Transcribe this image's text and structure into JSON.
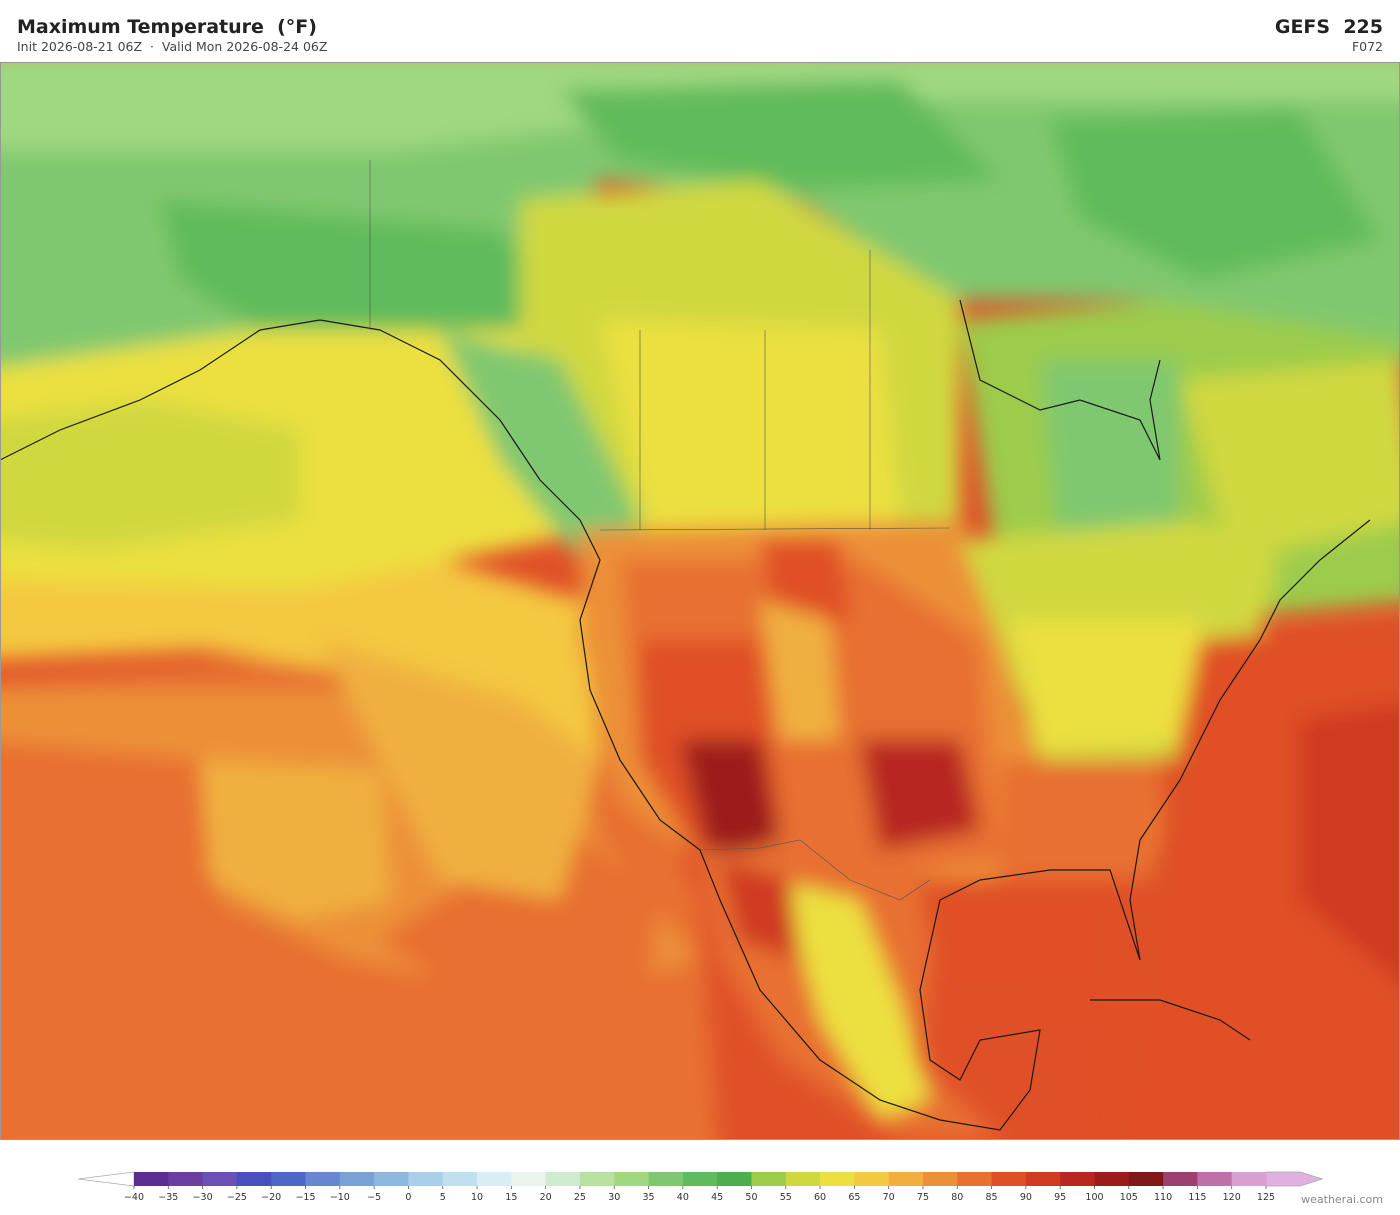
{
  "header": {
    "title": "Maximum Temperature  (°F)",
    "subtitle": "Init 2026-08-21 06Z  ·  Valid Mon 2026-08-24 06Z",
    "model": "GEFS  225",
    "forecast_hour": "F072"
  },
  "colorbar": {
    "levels": [
      {
        "value": -40,
        "label": "−40"
      },
      {
        "value": -35,
        "label": "−35"
      },
      {
        "value": -30,
        "label": "−30"
      },
      {
        "value": -25,
        "label": "−25"
      },
      {
        "value": -20,
        "label": "−20"
      },
      {
        "value": -15,
        "label": "−15"
      },
      {
        "value": -10,
        "label": "−10"
      },
      {
        "value": -5,
        "label": "−5"
      },
      0,
      5,
      10,
      15,
      20,
      25,
      30,
      35,
      40,
      45,
      50,
      55,
      60,
      65,
      70,
      75,
      80,
      85,
      90,
      95,
      100,
      105,
      110,
      115,
      120,
      125
    ],
    "colors": [
      "#5a2d8e",
      "#6b3fa0",
      "#6a52b4",
      "#4a4fc0",
      "#4e66c8",
      "#6688d0",
      "#7aa0d8",
      "#8db8e0",
      "#a8d0e8",
      "#c0e0f0",
      "#d8eef4",
      "#e8f4ec",
      "#d0ecd0",
      "#b8e0a0",
      "#a0d880",
      "#80c870",
      "#60bb5c",
      "#4caf4c",
      "#9ccc4c",
      "#d0d840",
      "#ece040",
      "#f4c840",
      "#f0b040",
      "#ec9038",
      "#e87030",
      "#e05028",
      "#d03a20",
      "#b82820",
      "#9c1c1c",
      "#801818",
      "#9c4070",
      "#c070a8",
      "#d8a0d0"
    ],
    "under_color": "#ffffff",
    "over_color": "#e0b0e0"
  },
  "credit": "weatherai.com"
}
